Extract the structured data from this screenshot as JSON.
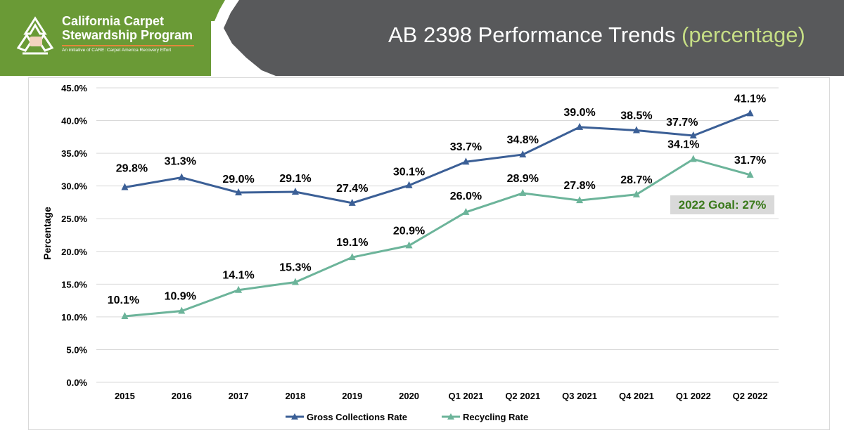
{
  "header": {
    "brand_line1": "California Carpet",
    "brand_line2": "Stewardship Program",
    "brand_tagline": "An initiative of CARE: Carpet America Recovery Effort",
    "title_main": "AB 2398 Performance Trends",
    "title_accent": "(percentage)"
  },
  "goal": {
    "text": "2022 Goal: 27%"
  },
  "colors": {
    "gross": "#3b5f96",
    "recycling": "#6cb49a",
    "grid": "#d9d9d9",
    "header_bg": "#58595b",
    "logo_bg": "#6a9a36",
    "accent": "#c6de85"
  },
  "chart_data": {
    "type": "line",
    "title": "",
    "xlabel": "",
    "ylabel": "Percentage",
    "ylim": [
      0,
      45
    ],
    "ytick_step": 5,
    "ytick_labels": [
      "0.0%",
      "5.0%",
      "10.0%",
      "15.0%",
      "20.0%",
      "25.0%",
      "30.0%",
      "35.0%",
      "40.0%",
      "45.0%"
    ],
    "categories": [
      "2015",
      "2016",
      "2017",
      "2018",
      "2019",
      "2020",
      "Q1 2021",
      "Q2 2021",
      "Q3 2021",
      "Q4 2021",
      "Q1 2022",
      "Q2 2022"
    ],
    "grid": true,
    "legend_position": "bottom",
    "series": [
      {
        "name": "Gross Collections Rate",
        "color": "#3b5f96",
        "values": [
          29.8,
          31.3,
          29.0,
          29.1,
          27.4,
          30.1,
          33.7,
          34.8,
          39.0,
          38.5,
          37.7,
          41.1
        ],
        "labels": [
          "29.8%",
          "31.3%",
          "29.0%",
          "29.1%",
          "27.4%",
          "30.1%",
          "33.7%",
          "34.8%",
          "39.0%",
          "38.5%",
          "37.7%",
          "41.1%"
        ]
      },
      {
        "name": "Recycling Rate",
        "color": "#6cb49a",
        "values": [
          10.1,
          10.9,
          14.1,
          15.3,
          19.1,
          20.9,
          26.0,
          28.9,
          27.8,
          28.7,
          34.1,
          31.7
        ],
        "labels": [
          "10.1%",
          "10.9%",
          "14.1%",
          "15.3%",
          "19.1%",
          "20.9%",
          "26.0%",
          "28.9%",
          "27.8%",
          "28.7%",
          "34.1%",
          "31.7%"
        ]
      }
    ]
  }
}
